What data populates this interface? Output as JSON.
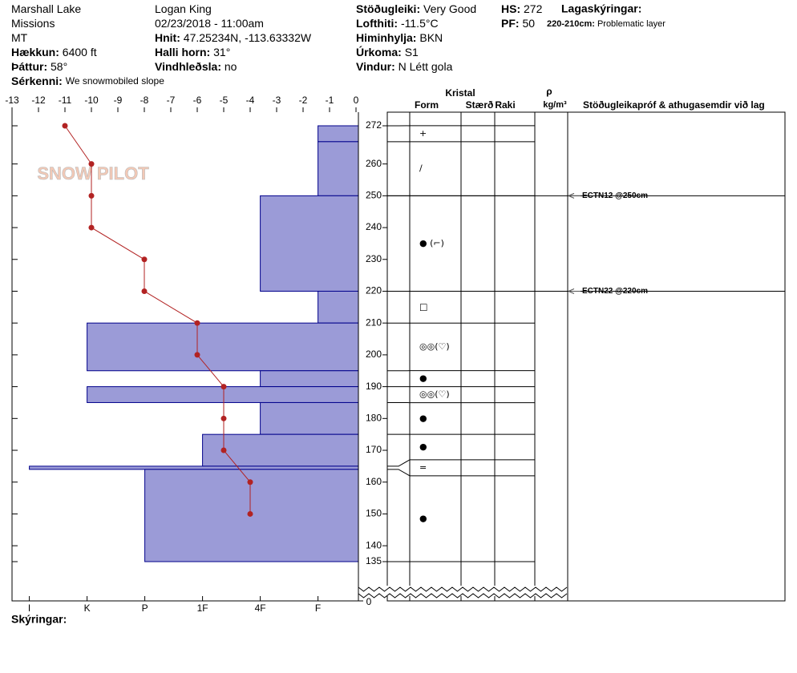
{
  "header": {
    "columns": [
      [
        {
          "value": "Marshall Lake"
        },
        {
          "value": "Missions"
        },
        {
          "value": "MT"
        },
        {
          "label": "Hækkun:",
          "value": "6400 ft"
        },
        {
          "label": "Þáttur:",
          "value": "58°"
        },
        {
          "label": "Sérkenni:",
          "value": "We snowmobiled slope"
        }
      ],
      [
        {
          "value": "Logan King"
        },
        {
          "value": "02/23/2018 - 11:00am"
        },
        {
          "label": "Hnit:",
          "value": "47.25234N, -113.63332W"
        },
        {
          "label": "Halli horn:",
          "value": "31°"
        },
        {
          "label": "Vindhleðsla:",
          "value": "no"
        }
      ],
      [
        {
          "label": "Stöðugleiki:",
          "value": "Very Good"
        },
        {
          "label": "Lofthiti:",
          "value": "-11.5°C"
        },
        {
          "label": "Himinhylja:",
          "value": "BKN"
        },
        {
          "label": "Úrkoma:",
          "value": "S1"
        },
        {
          "label": "Vindur:",
          "value": "N Létt gola"
        }
      ],
      [
        {
          "label": "HS:",
          "value": "272"
        },
        {
          "label": "PF:",
          "value": "50"
        }
      ]
    ],
    "layer_notes_title": "Lagaskýringar:",
    "layer_notes": [
      {
        "label": "220-210cm:",
        "value": "Problematic layer"
      }
    ],
    "logo": "SNOW PILOT",
    "footer": "Skýringar:"
  },
  "chart_data": {
    "type": "snowpit",
    "xlim": [
      -13,
      0
    ],
    "xticks": [
      -13,
      -12,
      -11,
      -10,
      -9,
      -8,
      -7,
      -6,
      -5,
      -4,
      -3,
      -2,
      -1,
      0
    ],
    "ylim": [
      135,
      272
    ],
    "yticks": [
      272,
      260,
      250,
      240,
      230,
      220,
      210,
      200,
      190,
      180,
      170,
      160,
      150,
      140,
      135
    ],
    "base_depth": 0,
    "hardness_lim": [
      6.3,
      0.3
    ],
    "hardness_ticks": [
      {
        "value": 6,
        "label": "I"
      },
      {
        "value": 5,
        "label": "K"
      },
      {
        "value": 4,
        "label": "P"
      },
      {
        "value": 3,
        "label": "1F"
      },
      {
        "value": 2,
        "label": "4F"
      },
      {
        "value": 1,
        "label": "F"
      }
    ],
    "bar_color": "#9b9bd7",
    "bar_edge": "#00008b",
    "layers": [
      {
        "top": 272,
        "bottom": 267,
        "hardness": 1,
        "form": "+"
      },
      {
        "top": 267,
        "bottom": 250,
        "hardness": 1,
        "form": "/"
      },
      {
        "top": 250,
        "bottom": 220,
        "hardness": 2,
        "form": "● (⌐)"
      },
      {
        "top": 220,
        "bottom": 210,
        "hardness": 1,
        "form": "□"
      },
      {
        "top": 210,
        "bottom": 195,
        "hardness": 5,
        "form": "◎◎(♡)"
      },
      {
        "top": 195,
        "bottom": 190,
        "hardness": 2,
        "form": "●"
      },
      {
        "top": 190,
        "bottom": 185,
        "hardness": 5,
        "form": "◎◎(♡)"
      },
      {
        "top": 185,
        "bottom": 175,
        "hardness": 2,
        "form": "●"
      },
      {
        "top": 175,
        "bottom": 165,
        "hardness": 3,
        "form": "●"
      },
      {
        "top": 165,
        "bottom": 164,
        "hardness": 6,
        "form": "="
      },
      {
        "top": 164,
        "bottom": 135,
        "hardness": 4,
        "form": "●"
      }
    ],
    "temperature": {
      "color": "#b22222",
      "depths": [
        272,
        260,
        250,
        240,
        230,
        220,
        210,
        200,
        190,
        180,
        170,
        160,
        150
      ],
      "values": [
        -11,
        -10,
        -10,
        -10,
        -8,
        -8,
        -6,
        -6,
        -5,
        -5,
        -5,
        -4,
        -4
      ]
    },
    "columns": {
      "crystal": "Kristal",
      "form": "Form",
      "size": "Stærð",
      "moisture": "Raki",
      "rho": "ρ",
      "density_unit": "kg/m³",
      "tests": "Stöðugleikapróf & athugasemdir við lag"
    },
    "tests": [
      {
        "depth": 250,
        "label": "ECTN12 @250cm"
      },
      {
        "depth": 220,
        "label": "ECTN22 @220cm"
      }
    ]
  }
}
